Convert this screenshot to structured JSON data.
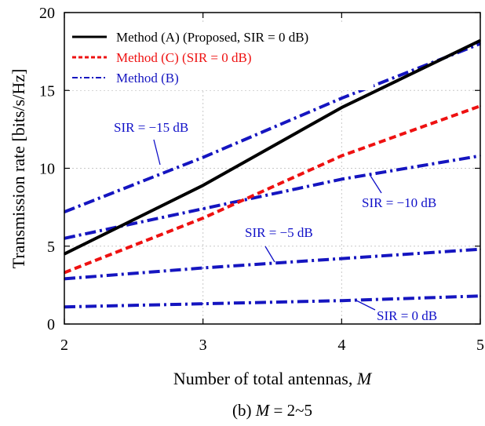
{
  "chart_data": {
    "type": "line",
    "x": [
      2,
      3,
      4,
      5
    ],
    "xlim": [
      2,
      5
    ],
    "ylim": [
      0,
      20
    ],
    "xticks": [
      "2",
      "3",
      "4",
      "5"
    ],
    "yticks": [
      "0",
      "5",
      "10",
      "15",
      "20"
    ],
    "xlabel_prefix": "Number of total antennas, ",
    "xlabel_var": "M",
    "ylabel": "Transmission rate [bits/s/Hz]",
    "caption_prefix": "(b) ",
    "caption_var": "M",
    "caption_suffix": " = 2~5",
    "grid": true,
    "legend_position": "top-left",
    "series": [
      {
        "name": "Method (A) (Proposed, SIR = 0 dB)",
        "color": "#000000",
        "style": "solid",
        "values": [
          4.5,
          8.9,
          13.9,
          18.2
        ]
      },
      {
        "name": "Method (C) (SIR = 0 dB)",
        "color": "#ee1111",
        "style": "dashed",
        "values": [
          3.3,
          6.8,
          10.8,
          14.0
        ]
      },
      {
        "name": "Method (B)",
        "color": "#1515c0",
        "style": "dashdot",
        "values": [
          7.2,
          10.7,
          14.5,
          18.0
        ]
      },
      {
        "name": "",
        "color": "#1515c0",
        "style": "dashdot",
        "values": [
          5.5,
          7.4,
          9.3,
          10.8
        ]
      },
      {
        "name": "",
        "color": "#1515c0",
        "style": "dashdot",
        "values": [
          2.9,
          3.6,
          4.2,
          4.8
        ]
      },
      {
        "name": "",
        "color": "#1515c0",
        "style": "dashdot",
        "values": [
          1.1,
          1.3,
          1.5,
          1.8
        ]
      }
    ],
    "annotations": [
      {
        "text": "SIR = −15 dB"
      },
      {
        "text": "SIR = −10 dB"
      },
      {
        "text": "SIR = −5 dB"
      },
      {
        "text": "SIR = 0 dB"
      }
    ]
  }
}
